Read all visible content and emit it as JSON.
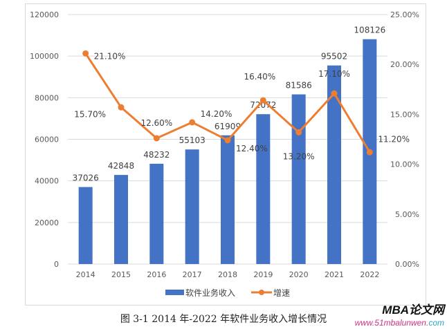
{
  "chart_data": {
    "type": "bar+line",
    "categories": [
      "2014",
      "2015",
      "2016",
      "2017",
      "2018",
      "2019",
      "2020",
      "2021",
      "2022"
    ],
    "series": [
      {
        "name": "软件业务收入",
        "type": "bar",
        "axis": "left",
        "color": "#4472C4",
        "values": [
          37026,
          42848,
          48232,
          55103,
          61909,
          72072,
          81586,
          95502,
          108126
        ],
        "labels": [
          "37026",
          "42848",
          "48232",
          "55103",
          "61909",
          "72072",
          "81586",
          "95502",
          "108126"
        ]
      },
      {
        "name": "增速",
        "type": "line",
        "axis": "right",
        "color": "#ED7D31",
        "values": [
          21.1,
          15.7,
          12.6,
          14.2,
          12.4,
          16.4,
          13.2,
          17.1,
          11.2
        ],
        "labels": [
          "21.10%",
          "15.70%",
          "12.60%",
          "14.20%",
          "12.40%",
          "16.40%",
          "13.20%",
          "17.10%",
          "11.20%"
        ]
      }
    ],
    "left_axis": {
      "range": [
        0,
        120000
      ],
      "ticks": [
        "0",
        "20000",
        "40000",
        "60000",
        "80000",
        "100000",
        "120000"
      ]
    },
    "right_axis": {
      "range": [
        0,
        25
      ],
      "ticks": [
        "0.00%",
        "5.00%",
        "10.00%",
        "15.00%",
        "20.00%",
        "25.00%"
      ]
    },
    "grid": true,
    "legend": "bottom"
  },
  "caption": "图 3-1 2014 年-2022 年软件业务收入增长情况",
  "watermark": {
    "logo": "MBA论文网",
    "url_main": "www.51mbalunwen.",
    "url_tld": "com"
  }
}
